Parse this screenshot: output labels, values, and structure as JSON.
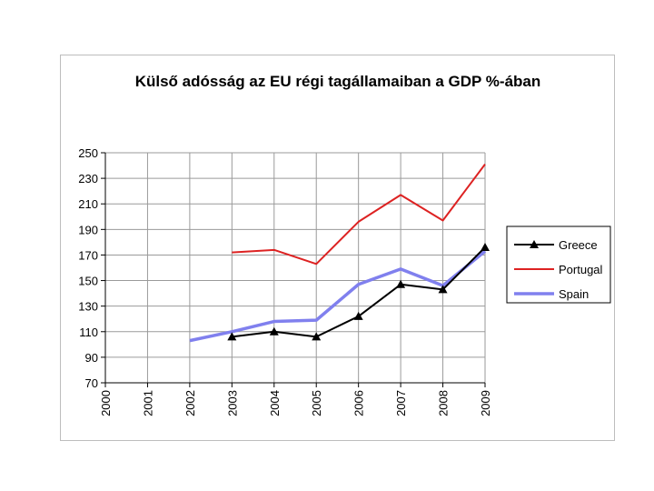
{
  "chart_data": {
    "type": "line",
    "title": "Külső adósság az EU régi tagállamaiban a GDP %-ában",
    "xlabel": "",
    "ylabel": "",
    "x": [
      "2000",
      "2001",
      "2002",
      "2003",
      "2004",
      "2005",
      "2006",
      "2007",
      "2008",
      "2009"
    ],
    "ylim": [
      70,
      250
    ],
    "yticks": [
      70,
      90,
      110,
      130,
      150,
      170,
      190,
      210,
      230,
      250
    ],
    "grid": true,
    "legend": "right",
    "series": [
      {
        "name": "Greece",
        "color": "#000000",
        "marker": "triangle",
        "values": [
          null,
          null,
          null,
          106,
          110,
          106,
          122,
          147,
          143,
          176
        ]
      },
      {
        "name": "Portugal",
        "color": "#dd2222",
        "marker": "none",
        "values": [
          null,
          null,
          null,
          172,
          174,
          163,
          196,
          217,
          197,
          241
        ]
      },
      {
        "name": "Spain",
        "color": "#8080ee",
        "marker": "none",
        "values": [
          null,
          null,
          103,
          110,
          118,
          119,
          147,
          159,
          146,
          173
        ]
      }
    ]
  }
}
